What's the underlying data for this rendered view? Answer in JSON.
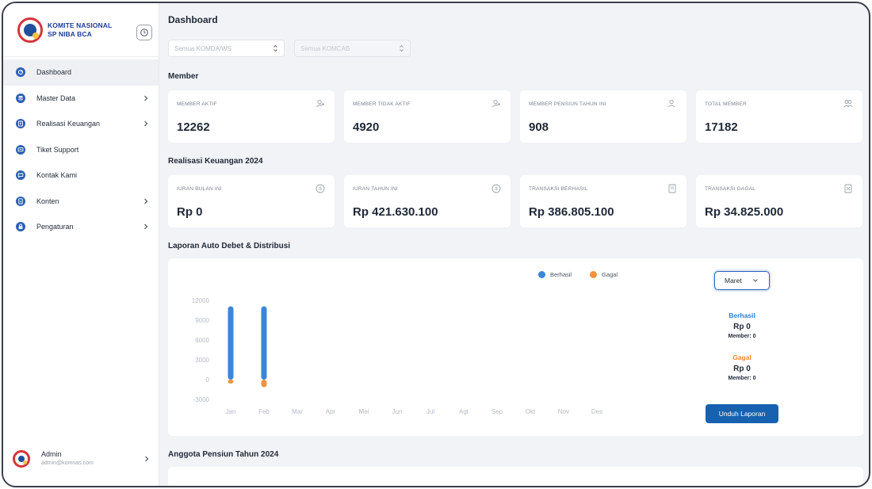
{
  "brand": {
    "line1": "KOMITE NASIONAL",
    "line2": "SP NIBA BCA"
  },
  "sidebar": {
    "items": [
      {
        "label": "Dashboard",
        "icon": "dashboard-icon",
        "chevron": false,
        "active": true
      },
      {
        "label": "Master Data",
        "icon": "database-icon",
        "chevron": true,
        "active": false
      },
      {
        "label": "Realisasi Keuangan",
        "icon": "finance-icon",
        "chevron": true,
        "active": false
      },
      {
        "label": "Tiket Support",
        "icon": "ticket-icon",
        "chevron": false,
        "active": false
      },
      {
        "label": "Kontak Kami",
        "icon": "contact-icon",
        "chevron": false,
        "active": false
      },
      {
        "label": "Konten",
        "icon": "content-icon",
        "chevron": true,
        "active": false
      },
      {
        "label": "Pengaturan",
        "icon": "lock-icon",
        "chevron": true,
        "active": false
      }
    ],
    "user": {
      "name": "Admin",
      "email": "admin@komnas.com"
    }
  },
  "page": {
    "title": "Dashboard"
  },
  "filters": {
    "komda": {
      "placeholder": "Semua KOMDA/WS"
    },
    "komcab": {
      "placeholder": "Semua KOMCAB"
    }
  },
  "member": {
    "title": "Member",
    "cards": [
      {
        "label": "MEMBER AKTIF",
        "value": "12262",
        "icon": "user-plus-icon"
      },
      {
        "label": "MEMBER TIDAK AKTIF",
        "value": "4920",
        "icon": "user-plus-icon"
      },
      {
        "label": "MEMBER PENSIUN TAHUN INI",
        "value": "908",
        "icon": "user-icon"
      },
      {
        "label": "TOTAL MEMBER",
        "value": "17182",
        "icon": "users-icon"
      }
    ]
  },
  "finance": {
    "title": "Realisasi Keuangan 2024",
    "cards": [
      {
        "label": "IURAN BULAN INI",
        "value": "Rp 0",
        "icon": "coin-icon"
      },
      {
        "label": "IURAN TAHUN INI",
        "value": "Rp 421.630.100",
        "icon": "coin-icon"
      },
      {
        "label": "TRANSAKSI BERHASIL",
        "value": "Rp 386.805.100",
        "icon": "receipt-icon"
      },
      {
        "label": "TRANSAKSI GAGAL",
        "value": "Rp 34.825.000",
        "icon": "receipt-x-icon"
      }
    ]
  },
  "report": {
    "title": "Laporan Auto Debet & Distribusi",
    "month_label": "Maret",
    "success": {
      "label": "Berhasil",
      "value": "Rp 0",
      "member": "Member: 0",
      "color": "#2d7fd3"
    },
    "failed": {
      "label": "Gagal",
      "value": "Rp 0",
      "member": "Member: 0",
      "color": "#ef8c35"
    },
    "download_label": "Unduh Laporan"
  },
  "colors": {
    "berhasil": "#3a86d9",
    "gagal": "#f2923d",
    "primary": "#1762b0"
  },
  "chart_data": {
    "type": "bar",
    "categories": [
      "Jan",
      "Feb",
      "Mar",
      "Apr",
      "Mei",
      "Jun",
      "Jul",
      "Agt",
      "Sep",
      "Okt",
      "Nov",
      "Des"
    ],
    "series": [
      {
        "name": "Berhasil",
        "values": [
          11100,
          11100,
          0,
          0,
          0,
          0,
          0,
          0,
          0,
          0,
          0,
          0
        ]
      },
      {
        "name": "Gagal",
        "values": [
          -600,
          -1150,
          0,
          0,
          0,
          0,
          0,
          0,
          0,
          0,
          0,
          0
        ]
      }
    ],
    "yticks": [
      "12000",
      "9000",
      "6000",
      "3000",
      "0",
      "-3000"
    ],
    "ylim": [
      -3000,
      12000
    ],
    "legend": "top",
    "grid": false
  },
  "pensiun": {
    "title": "Anggota Pensiun Tahun 2024"
  }
}
